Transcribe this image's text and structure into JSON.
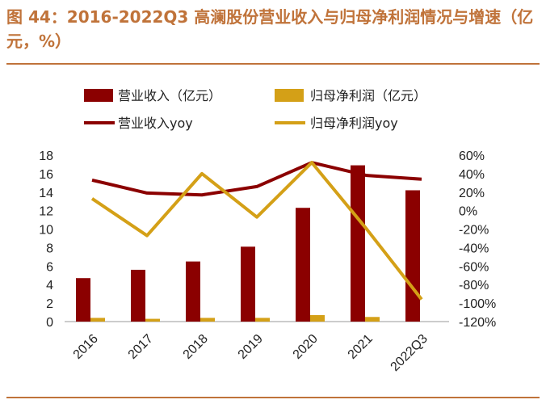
{
  "title": "图 44：2016-2022Q3 高澜股份营业收入与归母净利润情况与增速（亿元，%）",
  "colors": {
    "revenue": "#8B0000",
    "profit": "#D4A017",
    "title": "#C0733A"
  },
  "chart_data": {
    "type": "bar+line",
    "categories": [
      "2016",
      "2017",
      "2018",
      "2019",
      "2020",
      "2021",
      "2022Q3"
    ],
    "y_left": {
      "min": 0,
      "max": 18,
      "ticks": [
        "0",
        "2",
        "4",
        "6",
        "8",
        "10",
        "12",
        "14",
        "16",
        "18"
      ]
    },
    "y_right": {
      "min": -120,
      "max": 60,
      "ticks": [
        "-120%",
        "-100%",
        "-80%",
        "-60%",
        "-40%",
        "-20%",
        "0%",
        "20%",
        "40%",
        "60%"
      ]
    },
    "bars": [
      {
        "name": "营业收入（亿元）",
        "values": [
          4.7,
          5.6,
          6.5,
          8.1,
          12.3,
          16.9,
          14.2
        ]
      },
      {
        "name": "归母净利润（亿元）",
        "values": [
          0.4,
          0.3,
          0.4,
          0.4,
          0.7,
          0.5,
          0.0
        ]
      }
    ],
    "lines": [
      {
        "name": "营业收入yoy",
        "values": [
          33,
          19,
          17,
          26,
          52,
          38,
          34
        ]
      },
      {
        "name": "归母净利润yoy",
        "values": [
          13,
          -27,
          40,
          -7,
          52,
          -20,
          -96
        ]
      }
    ],
    "legend": "top"
  }
}
